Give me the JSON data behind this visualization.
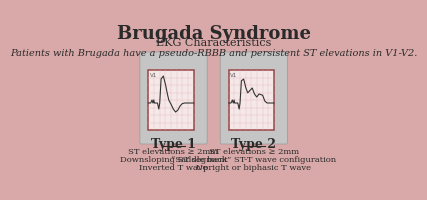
{
  "title": "Brugada Syndrome",
  "subtitle": "EKG Characteristics",
  "description": "Patients with Brugada have a pseudo-RBBB and persistent ST elevations in V1-V2.",
  "bg_color": "#d9a8a8",
  "panel_bg": "#c5c5c5",
  "panel_border": "#999999",
  "ekg_bg": "#f5e8e8",
  "ekg_border": "#a05050",
  "ekg_grid": "#e8b8b8",
  "ekg_line": "#333333",
  "type1_label": "Type 1",
  "type1_lines": [
    "ST elevations ≥ 2mm",
    "Downsloping ST segment",
    "Inverted T wave"
  ],
  "type2_label": "Type 2",
  "type2_lines": [
    "ST elevations ≥ 2mm",
    "“Saddle back” ST-T wave configuration",
    "Upright or biphasic T wave"
  ],
  "v1_label": "V1",
  "title_fontsize": 13,
  "subtitle_fontsize": 8,
  "desc_fontsize": 7,
  "label_fontsize": 9,
  "text_fontsize": 6
}
